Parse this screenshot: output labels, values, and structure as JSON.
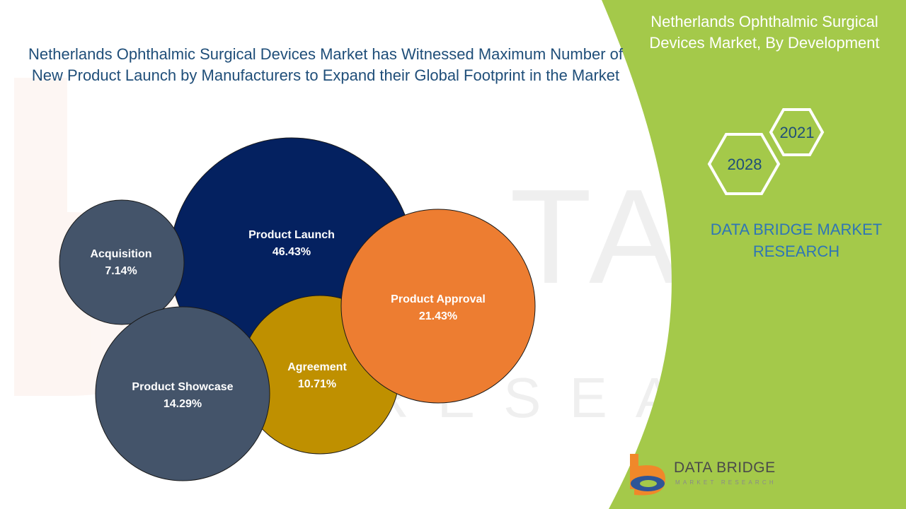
{
  "title": "Netherlands Ophthalmic Surgical Devices Market has Witnessed Maximum Number of New Product Launch by Manufacturers to Expand their Global Footprint in the Market",
  "side_panel": {
    "title": "Netherlands Ophthalmic Surgical Devices Market, By Development",
    "years": [
      "2021",
      "2028"
    ],
    "brand": "DATA BRIDGE MARKET RESEARCH"
  },
  "logo": {
    "name": "DATA BRIDGE",
    "tagline": "MARKET RESEARCH"
  },
  "colors": {
    "panel_green": "#a4c94a",
    "navy": "#042160",
    "slate": "#44546a",
    "gold": "#bf9000",
    "orange": "#ed7d31",
    "title_blue": "#1f4e79",
    "brand_blue": "#2e75b6",
    "logo_orange": "#f0882a",
    "logo_blue": "#2f5597"
  },
  "chart_data": {
    "type": "bubble",
    "title": "Netherlands Ophthalmic Surgical Devices Market has Witnessed Maximum Number of New Product Launch by Manufacturers to Expand their Global Footprint in the Market",
    "unit": "%",
    "series": [
      {
        "category": "Product Launch",
        "value": 46.43,
        "label": "46.43%",
        "color": "#042160"
      },
      {
        "category": "Product Approval",
        "value": 21.43,
        "label": "21.43%",
        "color": "#ed7d31"
      },
      {
        "category": "Product Showcase",
        "value": 14.29,
        "label": "14.29%",
        "color": "#44546a"
      },
      {
        "category": "Agreement",
        "value": 10.71,
        "label": "10.71%",
        "color": "#bf9000"
      },
      {
        "category": "Acquisition",
        "value": 7.14,
        "label": "7.14%",
        "color": "#44546a"
      }
    ]
  }
}
